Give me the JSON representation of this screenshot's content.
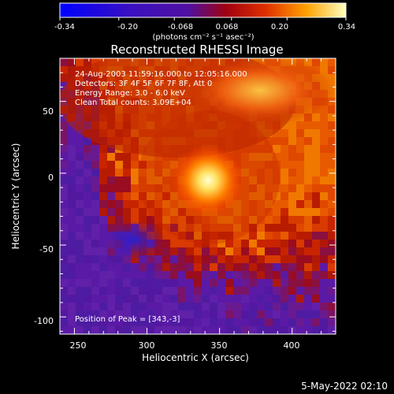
{
  "colorbar": {
    "tick_labels": [
      "-0.34",
      "-0.20",
      "-0.068",
      "0.068",
      "0.20",
      "0.34"
    ],
    "unit_label": "(photons cm⁻² s⁻¹ asec⁻²)",
    "range": [
      -0.34,
      0.34
    ]
  },
  "plot": {
    "title": "Reconstructed RHESSI Image",
    "info_lines": [
      "24-Aug-2003 11:59:16.000 to 12:05:16.000",
      "Detectors: 3F 4F 5F 6F 7F 8F, Att 0",
      "Energy Range: 3.0 - 6.0 keV",
      "Clean      Total counts: 3.09E+04"
    ],
    "peak_label": "Position of Peak = [343,-3]",
    "x_axis": {
      "title": "Heliocentric X (arcsec)",
      "tick_labels": [
        "250",
        "300",
        "350",
        "400"
      ],
      "range": [
        240,
        430
      ]
    },
    "y_axis": {
      "title": "Heliocentric Y (arcsec)",
      "tick_labels": [
        "50",
        "0",
        "-50",
        "-100"
      ],
      "range": [
        -112,
        80
      ]
    },
    "peak": {
      "x": 343,
      "y": -3
    }
  },
  "footer": {
    "timestamp": "5-May-2022 02:10"
  }
}
